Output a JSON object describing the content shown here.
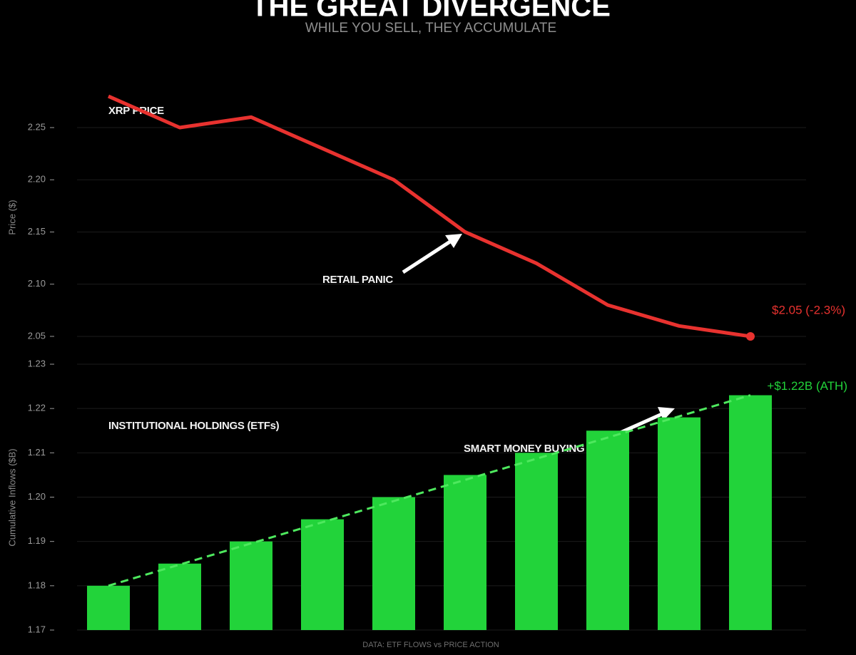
{
  "title": "THE GREAT DIVERGENCE",
  "subtitle": "WHILE YOU SELL, THEY ACCUMULATE",
  "footer": "DATA: ETF FLOWS vs PRICE ACTION",
  "chart_data": [
    {
      "type": "line",
      "series_label": "XRP PRICE",
      "callout": "RETAIL PANIC",
      "end_label": "$2.05 (-2.3%)",
      "y_label": "Price ($)",
      "categories": [
        null,
        null,
        null,
        null,
        null,
        null,
        null,
        null,
        null,
        null
      ],
      "values": [
        2.28,
        2.25,
        2.26,
        2.23,
        2.2,
        2.15,
        2.12,
        2.08,
        2.06,
        2.05
      ],
      "color": "#e8322f",
      "ylim": [
        2.04,
        2.29
      ],
      "yticks": [
        2.05,
        {
          "value": 2.1,
          "label": "2.10"
        },
        2.15,
        {
          "value": 2.2,
          "label": "2.20"
        },
        2.25
      ],
      "grid": true
    },
    {
      "type": "bar",
      "series_label": "INSTITUTIONAL HOLDINGS (ETFs)",
      "callout": "SMART MONEY BUYING",
      "end_label": "+$1.22B (ATH)",
      "y_label": "Cumulative Inflows ($B)",
      "categories": [
        null,
        null,
        null,
        null,
        null,
        null,
        null,
        null,
        null,
        null
      ],
      "values": [
        1.18,
        1.185,
        1.19,
        1.195,
        1.2,
        1.205,
        1.21,
        1.215,
        1.218,
        1.223
      ],
      "color": "#22d33a",
      "trend_line": true,
      "ylim": [
        1.17,
        1.23
      ],
      "yticks": [
        1.17,
        1.18,
        1.19,
        {
          "value": 1.2,
          "label": "1.20"
        },
        1.21,
        1.22,
        1.23
      ],
      "grid": true
    }
  ]
}
